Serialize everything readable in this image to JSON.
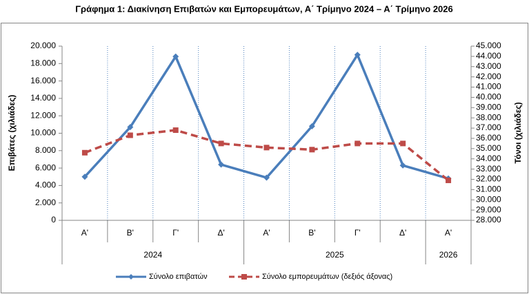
{
  "chart_data": {
    "type": "line",
    "title": "Γράφημα 1: Διακίνηση Επιβατών και Εμπορευμάτων, Α΄ Τρίμηνο 2024 – Α΄ Τρίμηνο 2026",
    "ylabel": "Επιβάτες  (χιλιάδες)",
    "y2label": "Τόνοι  (χιλιάδες)",
    "categories": [
      "Α'",
      "Β'",
      "Γ'",
      "Δ'",
      "Α'",
      "Β'",
      "Γ'",
      "Δ'",
      "Α'"
    ],
    "category_groups": [
      "2024",
      "2024",
      "2024",
      "2024",
      "2025",
      "2025",
      "2025",
      "2025",
      "2026"
    ],
    "series": [
      {
        "name": "Σύνολο επιβατών",
        "color": "#4a7ebb",
        "marker": "diamond",
        "dashed": false,
        "values": [
          5000,
          10700,
          18800,
          6400,
          4900,
          10800,
          19000,
          6300,
          4800
        ]
      },
      {
        "name": "Σύνολο εμπορευμάτων (δεξιός άξονας)",
        "color": "#be4b48",
        "marker": "square",
        "dashed": true,
        "axis": "y2",
        "values": [
          34600,
          36300,
          36800,
          35500,
          35100,
          34900,
          35500,
          35500,
          31900
        ]
      }
    ],
    "ylim": [
      0,
      20000
    ],
    "yticks": [
      0,
      {
        "value": 2000,
        "label": "2.000"
      },
      {
        "value": 4000,
        "label": "4.000"
      },
      {
        "value": 6000,
        "label": "6.000"
      },
      {
        "value": 8000,
        "label": "8.000"
      },
      {
        "value": 10000,
        "label": "10.000"
      },
      {
        "value": 12000,
        "label": "12.000"
      },
      {
        "value": 14000,
        "label": "14.000"
      },
      {
        "value": 16000,
        "label": "16.000"
      },
      {
        "value": 18000,
        "label": "18.000"
      },
      {
        "value": 20000,
        "label": "20.000"
      }
    ],
    "y2lim": [
      28000,
      45000
    ],
    "y2ticks": [
      {
        "value": 28000,
        "label": "28.000"
      },
      {
        "value": 29000,
        "label": "29.000"
      },
      {
        "value": 30000,
        "label": "30.000"
      },
      {
        "value": 31000,
        "label": "31.000"
      },
      {
        "value": 32000,
        "label": "32.000"
      },
      {
        "value": 33000,
        "label": "33.000"
      },
      {
        "value": 34000,
        "label": "34.000"
      },
      {
        "value": 35000,
        "label": "35.000"
      },
      {
        "value": 36000,
        "label": "36.000"
      },
      {
        "value": 37000,
        "label": "37.000"
      },
      {
        "value": 38000,
        "label": "38.000"
      },
      {
        "value": 39000,
        "label": "39.000"
      },
      {
        "value": 40000,
        "label": "40.000"
      },
      {
        "value": 41000,
        "label": "41.000"
      },
      {
        "value": 42000,
        "label": "42.000"
      },
      {
        "value": 43000,
        "label": "43.000"
      },
      {
        "value": 44000,
        "label": "44.000"
      },
      {
        "value": 45000,
        "label": "45.000"
      }
    ],
    "legend": "bottom"
  }
}
